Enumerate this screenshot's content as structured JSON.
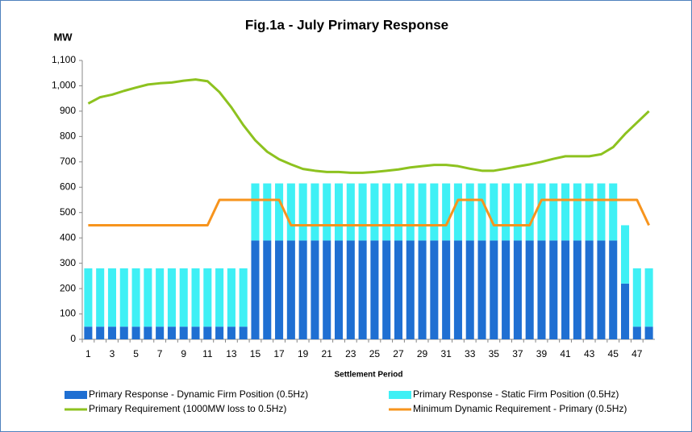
{
  "chart_data": {
    "type": "bar",
    "title": "Fig.1a - July Primary Response",
    "y_label": "MW",
    "x_label": "Settlement Period",
    "categories": [
      "1",
      null,
      "3",
      null,
      "5",
      null,
      "7",
      null,
      "9",
      null,
      "11",
      null,
      "13",
      null,
      "15",
      null,
      "17",
      null,
      "19",
      null,
      "21",
      null,
      "23",
      null,
      "25",
      null,
      "27",
      null,
      "29",
      null,
      "31",
      null,
      "33",
      null,
      "35",
      null,
      "37",
      null,
      "39",
      null,
      "41",
      null,
      "43",
      null,
      "45",
      null,
      "47",
      null
    ],
    "ylim": [
      0,
      1100
    ],
    "yticks": [
      0,
      100,
      200,
      300,
      400,
      500,
      600,
      700,
      800,
      900,
      {
        "value": 1000,
        "label": "1,000"
      },
      {
        "value": 1100,
        "label": "1,100"
      }
    ],
    "stacked": true,
    "series": [
      {
        "name": "Primary Response - Dynamic Firm Position (0.5Hz)",
        "type": "bar",
        "color": "#1f6fd2",
        "values": [
          50,
          50,
          50,
          50,
          50,
          50,
          50,
          50,
          50,
          50,
          50,
          50,
          50,
          50,
          390,
          390,
          390,
          390,
          390,
          390,
          390,
          390,
          390,
          390,
          390,
          390,
          390,
          390,
          390,
          390,
          390,
          390,
          390,
          390,
          390,
          390,
          390,
          390,
          390,
          390,
          390,
          390,
          390,
          390,
          390,
          220,
          50,
          50
        ]
      },
      {
        "name": "Primary Response - Static Firm Position (0.5Hz)",
        "type": "bar",
        "color": "#3ff0f5",
        "values": [
          230,
          230,
          230,
          230,
          230,
          230,
          230,
          230,
          230,
          230,
          230,
          230,
          230,
          230,
          225,
          225,
          225,
          225,
          225,
          225,
          225,
          225,
          225,
          225,
          225,
          225,
          225,
          225,
          225,
          225,
          225,
          225,
          225,
          225,
          225,
          225,
          225,
          225,
          225,
          225,
          225,
          225,
          225,
          225,
          225,
          230,
          230,
          230
        ]
      },
      {
        "name": "Primary Requirement (1000MW loss to 0.5Hz)",
        "type": "line",
        "color": "#8dc21f",
        "values": [
          930,
          955,
          965,
          980,
          993,
          1005,
          1010,
          1013,
          1020,
          1025,
          1018,
          975,
          915,
          845,
          785,
          740,
          710,
          690,
          672,
          665,
          660,
          660,
          657,
          657,
          660,
          665,
          670,
          678,
          683,
          688,
          688,
          683,
          673,
          665,
          665,
          673,
          682,
          690,
          700,
          712,
          722,
          722,
          722,
          730,
          758,
          810,
          855,
          900
        ]
      },
      {
        "name": "Minimum Dynamic Requirement - Primary  (0.5Hz)",
        "type": "line",
        "color": "#f7941d",
        "values": [
          450,
          450,
          450,
          450,
          450,
          450,
          450,
          450,
          450,
          450,
          450,
          550,
          550,
          550,
          550,
          550,
          550,
          450,
          450,
          450,
          450,
          450,
          450,
          450,
          450,
          450,
          450,
          450,
          450,
          450,
          450,
          550,
          550,
          550,
          450,
          450,
          450,
          450,
          550,
          550,
          550,
          550,
          550,
          550,
          550,
          550,
          550,
          450
        ]
      }
    ]
  }
}
